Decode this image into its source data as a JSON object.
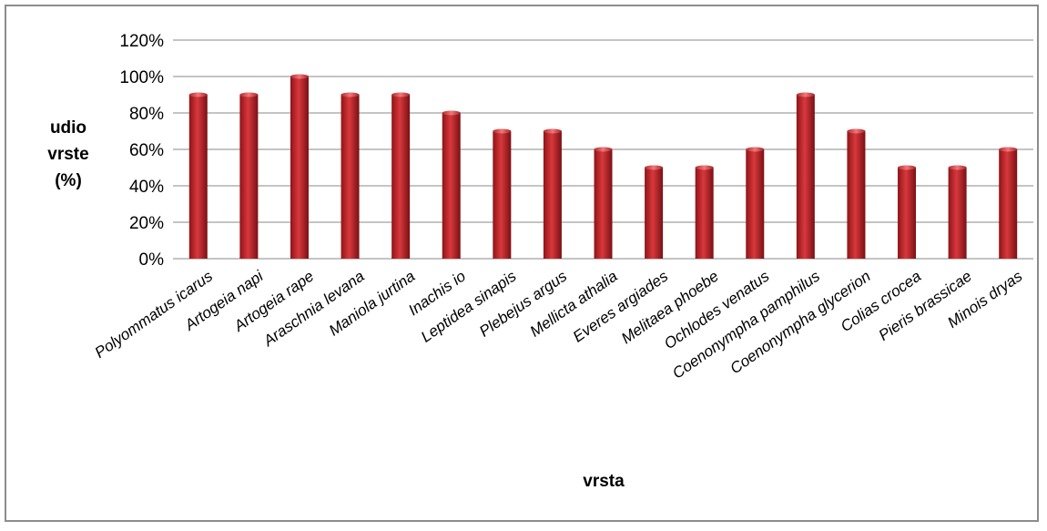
{
  "chart_data": {
    "type": "bar",
    "categories": [
      "Polyommatus icarus",
      "Artogeia napi",
      "Artogeia rape",
      "Araschnia levana",
      "Maniola jurtina",
      "Inachis io",
      "Leptidea sinapis",
      "Plebejus argus",
      "Mellicta athalia",
      "Everes argiades",
      "Melitaea phoebe",
      "Ochlodes venatus",
      "Coenonympha pamphilus",
      "Coenonympha glycerion",
      "Colias crocea",
      "Pieris brassicae",
      "Minois dryas"
    ],
    "values": [
      90,
      90,
      100,
      90,
      90,
      80,
      70,
      70,
      60,
      50,
      50,
      60,
      90,
      70,
      50,
      50,
      60
    ],
    "xlabel": "vrsta",
    "ylabel": [
      "udio",
      "vrste",
      "(%)"
    ],
    "ylim": [
      0,
      120
    ],
    "yticks": [
      "0%",
      "20%",
      "40%",
      "60%",
      "80%",
      "100%",
      "120%"
    ],
    "grid": true,
    "legend": "none",
    "bar_color": "#c0272d"
  }
}
